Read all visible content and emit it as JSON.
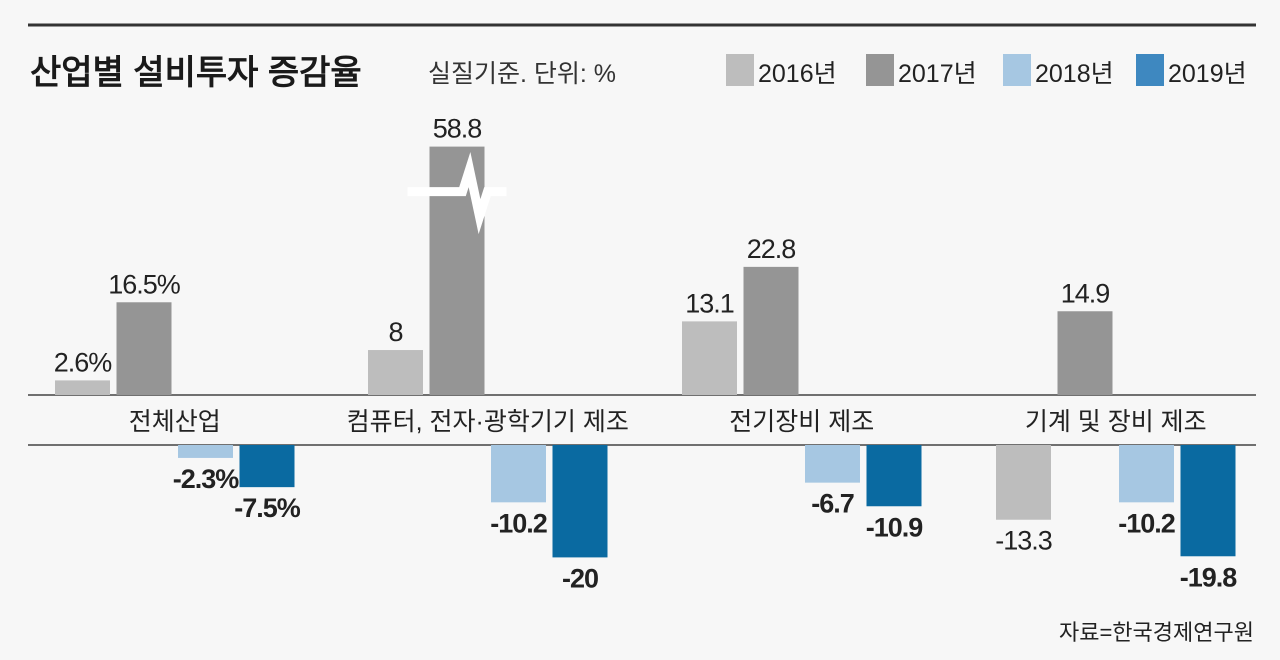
{
  "chart_data": {
    "type": "bar",
    "title": "산업별 설비투자 증감율",
    "subtitle": "실질기준. 단위: %",
    "source": "자료=한국경제연구원",
    "categories": [
      "전체산업",
      "컴퓨터, 전자·광학기기 제조",
      "전기장비 제조",
      "기계 및 장비 제조"
    ],
    "series": [
      {
        "name": "2016년",
        "color": "#bdbdbd",
        "values": [
          2.6,
          8,
          13.1,
          -13.3
        ],
        "labels": [
          "2.6%",
          "8",
          "13.1",
          "-13.3"
        ]
      },
      {
        "name": "2017년",
        "color": "#959595",
        "values": [
          16.5,
          58.8,
          22.8,
          14.9
        ],
        "labels": [
          "16.5%",
          "58.8",
          "22.8",
          "14.9"
        ]
      },
      {
        "name": "2018년",
        "color": "#a6c7e2",
        "values": [
          -2.3,
          -10.2,
          -6.7,
          -10.2
        ],
        "labels": [
          "-2.3%",
          "-10.2",
          "-6.7",
          "-10.2"
        ]
      },
      {
        "name": "2019년",
        "color": "#0a6aa1",
        "legend_color": "#3e88c0",
        "values": [
          -7.5,
          -20,
          -10.9,
          -19.8
        ],
        "labels": [
          "-7.5%",
          "-20",
          "-10.9",
          "-19.8"
        ]
      }
    ],
    "axis_break": {
      "category": "컴퓨터, 전자·광학기기 제조",
      "series": "2017년"
    },
    "grid": false,
    "legend": "top-right"
  }
}
